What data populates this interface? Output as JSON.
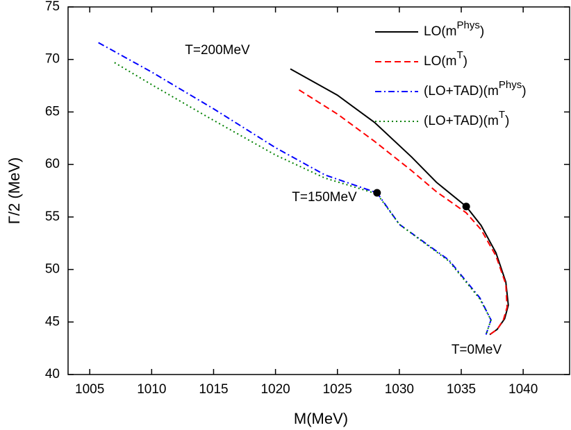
{
  "chart_data": {
    "type": "line",
    "xlabel": "M(MeV)",
    "ylabel": "Γ/2 (MeV)",
    "xlim": [
      1003.25,
      1043.75
    ],
    "ylim": [
      40,
      75
    ],
    "xticks": [
      1005,
      1010,
      1015,
      1020,
      1025,
      1030,
      1035,
      1040
    ],
    "yticks": [
      40,
      45,
      50,
      55,
      60,
      65,
      70,
      75
    ],
    "legend": "upper right",
    "series": [
      {
        "name": "LO(mPhys)",
        "color": "#000000",
        "style": "solid",
        "x": [
          1021.2,
          1025,
          1028,
          1031,
          1033,
          1035.4,
          1036.6,
          1037.8,
          1038.6,
          1038.8,
          1038.5,
          1037.9,
          1037.3
        ],
        "values": [
          69.1,
          66.6,
          64.0,
          60.7,
          58.3,
          56.0,
          54.2,
          51.6,
          48.8,
          46.6,
          45.3,
          44.3,
          43.8
        ]
      },
      {
        "name": "LO(mT)",
        "color": "#ff0000",
        "style": "dashed",
        "x": [
          1021.9,
          1025,
          1028,
          1031,
          1033,
          1035.4,
          1036.6,
          1037.8,
          1038.6,
          1038.7,
          1038.4,
          1037.9,
          1037.3
        ],
        "values": [
          67.1,
          64.8,
          62.2,
          59.4,
          57.4,
          55.4,
          53.8,
          51.3,
          48.6,
          46.4,
          45.2,
          44.3,
          43.8
        ]
      },
      {
        "name": "(LO+TAD)(mPhys)",
        "color": "#0000ff",
        "style": "dashdot",
        "x": [
          1005.7,
          1010,
          1015,
          1020,
          1024,
          1028.2,
          1030,
          1034,
          1036.5,
          1037.4,
          1037.0
        ],
        "values": [
          71.6,
          68.8,
          65.3,
          61.6,
          59.0,
          57.3,
          54.3,
          50.9,
          47.3,
          45.2,
          43.8
        ]
      },
      {
        "name": "(LO+TAD)(mT)",
        "color": "#008000",
        "style": "dotted",
        "x": [
          1007.0,
          1010,
          1015,
          1020,
          1024,
          1028.2,
          1030,
          1034,
          1036.5,
          1037.4,
          1037.0
        ],
        "values": [
          69.7,
          67.6,
          64.2,
          60.9,
          58.7,
          57.2,
          54.3,
          50.8,
          47.2,
          45.2,
          43.8
        ]
      }
    ],
    "markers": {
      "x": [
        1035.4,
        1028.2
      ],
      "values": [
        56.0,
        57.3
      ]
    },
    "annotations": [
      "T=200MeV",
      "T=150MeV",
      "T=0MeV"
    ]
  }
}
